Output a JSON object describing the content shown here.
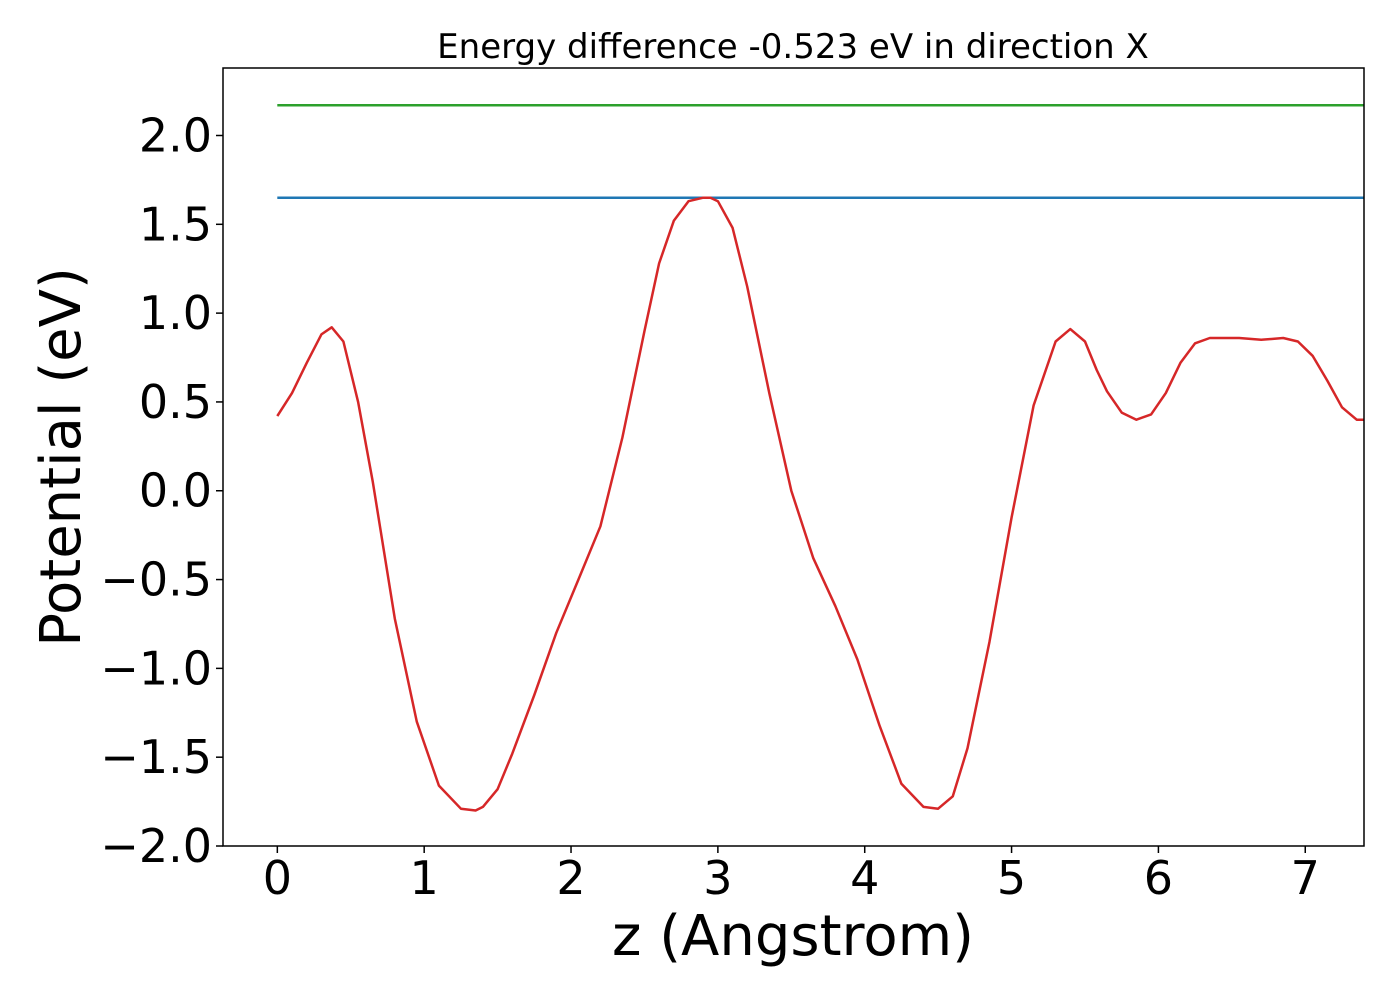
{
  "chart_data": {
    "type": "line",
    "title": "Energy difference -0.523 eV in direction X",
    "xlabel": "z (Angstrom)",
    "ylabel": "Potential (eV)",
    "xlim": [
      -0.37,
      7.4
    ],
    "ylim": [
      -2.0,
      2.38
    ],
    "xticks": [
      0,
      1,
      2,
      3,
      4,
      5,
      6,
      7
    ],
    "xtick_labels": [
      "0",
      "1",
      "2",
      "3",
      "4",
      "5",
      "6",
      "7"
    ],
    "yticks": [
      2.0,
      1.5,
      1.0,
      0.5,
      0.0,
      -0.5,
      -1.0,
      -1.5,
      -2.0
    ],
    "ytick_labels": [
      "2.0",
      "1.5",
      "1.0",
      "0.5",
      "0.0",
      "−0.5",
      "−1.0",
      "−1.5",
      "−2.0"
    ],
    "grid": false,
    "legend": false,
    "series": [
      {
        "color": "#2ca02c",
        "x": [
          0,
          7.4
        ],
        "y": [
          2.17,
          2.17
        ]
      },
      {
        "color": "#1f77b4",
        "x": [
          0,
          7.4
        ],
        "y": [
          1.65,
          1.65
        ]
      },
      {
        "color": "#d62728",
        "x": [
          0.0,
          0.1,
          0.2,
          0.3,
          0.37,
          0.45,
          0.55,
          0.65,
          0.8,
          0.95,
          1.1,
          1.25,
          1.35,
          1.4,
          1.5,
          1.6,
          1.75,
          1.9,
          2.05,
          2.2,
          2.35,
          2.5,
          2.6,
          2.7,
          2.8,
          2.9,
          2.95,
          3.0,
          3.1,
          3.2,
          3.35,
          3.5,
          3.65,
          3.8,
          3.95,
          4.1,
          4.25,
          4.4,
          4.5,
          4.6,
          4.7,
          4.85,
          5.0,
          5.15,
          5.3,
          5.4,
          5.5,
          5.58,
          5.65,
          5.75,
          5.85,
          5.95,
          6.05,
          6.15,
          6.25,
          6.35,
          6.45,
          6.55,
          6.7,
          6.85,
          6.95,
          7.05,
          7.15,
          7.25,
          7.35,
          7.4
        ],
        "y": [
          0.42,
          0.55,
          0.72,
          0.88,
          0.92,
          0.84,
          0.5,
          0.05,
          -0.72,
          -1.3,
          -1.66,
          -1.79,
          -1.8,
          -1.78,
          -1.68,
          -1.48,
          -1.15,
          -0.8,
          -0.5,
          -0.2,
          0.3,
          0.9,
          1.28,
          1.52,
          1.63,
          1.65,
          1.65,
          1.63,
          1.48,
          1.15,
          0.55,
          0.0,
          -0.38,
          -0.65,
          -0.95,
          -1.32,
          -1.65,
          -1.78,
          -1.79,
          -1.72,
          -1.45,
          -0.85,
          -0.15,
          0.48,
          0.84,
          0.91,
          0.84,
          0.68,
          0.56,
          0.44,
          0.4,
          0.43,
          0.55,
          0.72,
          0.83,
          0.86,
          0.86,
          0.86,
          0.85,
          0.86,
          0.84,
          0.76,
          0.62,
          0.47,
          0.4,
          0.4
        ]
      }
    ]
  }
}
